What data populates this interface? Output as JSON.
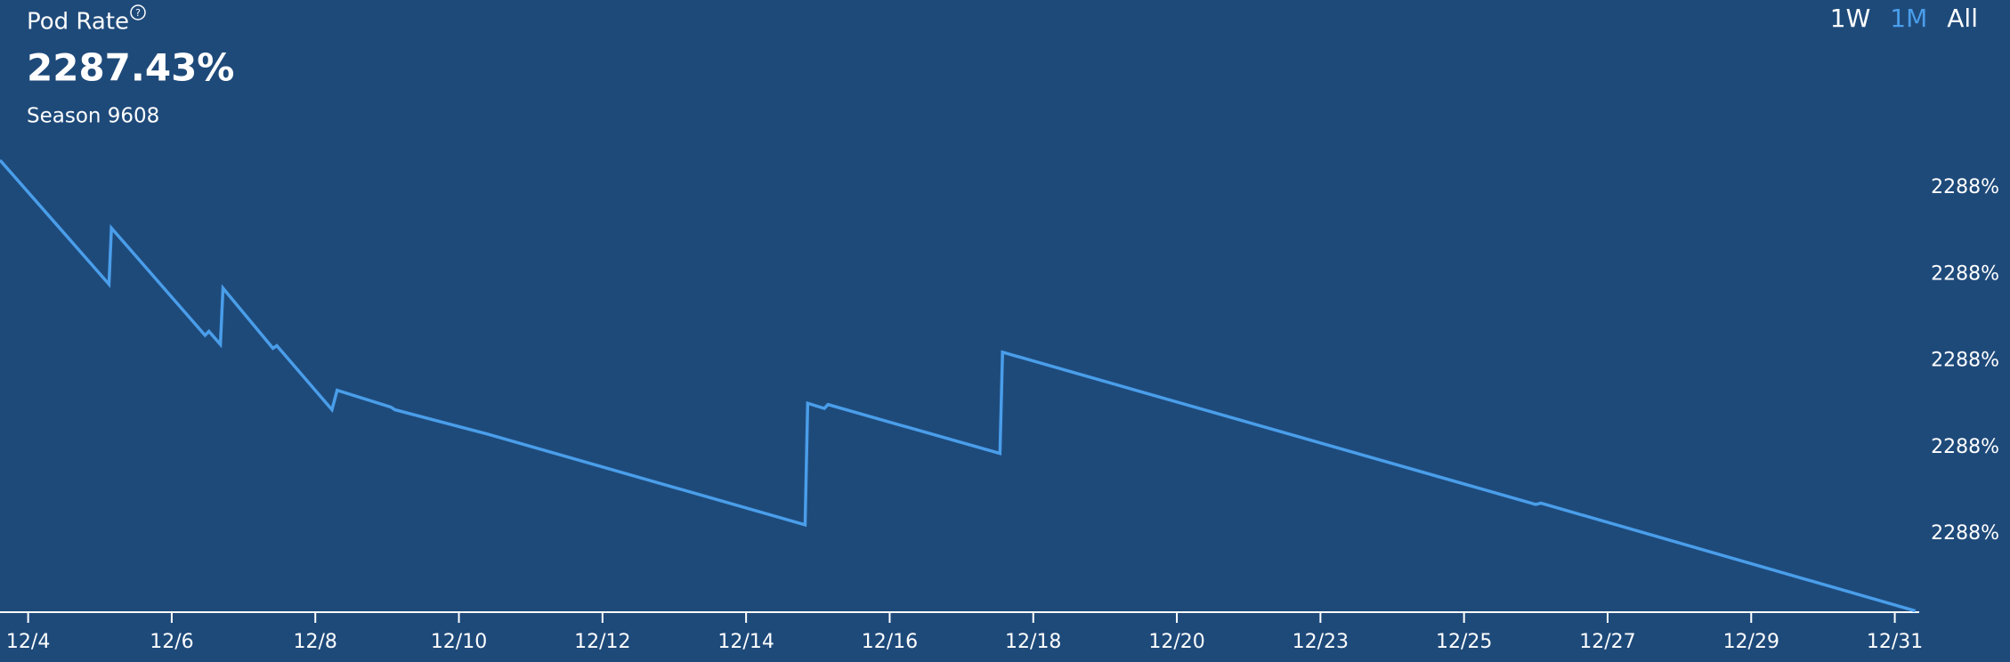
{
  "header": {
    "title": "Pod Rate",
    "info_icon": "?",
    "value": "2287.43%",
    "subtitle": "Season 9608"
  },
  "range_buttons": [
    "1W",
    "1M",
    "All"
  ],
  "active_range": "1M",
  "chart_data": {
    "type": "line",
    "x": [
      -0.196,
      0.563,
      0.58,
      1.232,
      1.259,
      1.339,
      1.357,
      1.705,
      1.732,
      2.116,
      2.152,
      2.527,
      2.554,
      3.196,
      5.411,
      5.429,
      5.545,
      5.571,
      5.696,
      6.768,
      6.786,
      10.5,
      10.536,
      13.143
    ],
    "series": [
      {
        "color": "#4a9eea",
        "values": [
          2287.5364,
          2287.5077,
          2287.5207,
          2287.4959,
          2287.4968,
          2287.4938,
          2287.5068,
          2287.4929,
          2287.4935,
          2287.4787,
          2287.4832,
          2287.4793,
          2287.4787,
          2287.4731,
          2287.4521,
          2287.4802,
          2287.479,
          2287.4799,
          2287.4787,
          2287.4686,
          2287.492,
          2287.4568,
          2287.4571,
          2287.4322
        ]
      }
    ],
    "xlim": [
      -0.196,
      13.17
    ],
    "ylim": [
      2287.4319,
      2287.5438
    ],
    "xticks": [
      {
        "value": 0,
        "label": "12/4"
      },
      {
        "value": 1,
        "label": "12/6"
      },
      {
        "value": 2,
        "label": "12/8"
      },
      {
        "value": 3,
        "label": "12/10"
      },
      {
        "value": 4,
        "label": "12/12"
      },
      {
        "value": 5,
        "label": "12/14"
      },
      {
        "value": 6,
        "label": "12/16"
      },
      {
        "value": 7,
        "label": "12/18"
      },
      {
        "value": 8,
        "label": "12/20"
      },
      {
        "value": 9,
        "label": "12/23"
      },
      {
        "value": 10,
        "label": "12/25"
      },
      {
        "value": 11,
        "label": "12/27"
      },
      {
        "value": 12,
        "label": "12/29"
      },
      {
        "value": 13,
        "label": "12/31"
      }
    ],
    "yticks": [
      {
        "value": 2287.45,
        "label": "2288%"
      },
      {
        "value": 2287.47,
        "label": "2288%"
      },
      {
        "value": 2287.49,
        "label": "2288%"
      },
      {
        "value": 2287.51,
        "label": "2288%"
      },
      {
        "value": 2287.53,
        "label": "2288%"
      }
    ]
  }
}
